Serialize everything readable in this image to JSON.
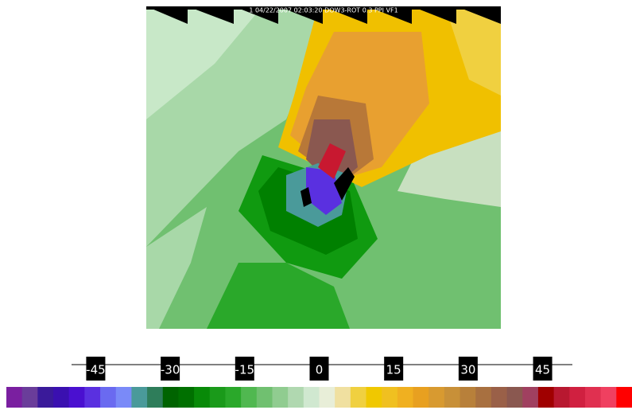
{
  "header": "1 04/22/2007 02:03:20 DOW3-ROT 0.3 PPI VF1",
  "colorbar": {
    "range": [
      -63,
      63
    ],
    "ticks": [
      -45,
      -30,
      -15,
      0,
      15,
      30,
      45
    ],
    "colors": [
      "#7a1fa0",
      "#6a3d9a",
      "#3a1a9a",
      "#3a10b0",
      "#4a10d0",
      "#5a30e0",
      "#6a6af0",
      "#7a8af8",
      "#4a9a9a",
      "#2e7d5a",
      "#006400",
      "#007000",
      "#088a08",
      "#1a9a1a",
      "#2aa82a",
      "#50b850",
      "#70c070",
      "#90cc90",
      "#b0d8b0",
      "#d0e8d0",
      "#e8eed8",
      "#f0e0a0",
      "#f0d040",
      "#f0c800",
      "#f0c020",
      "#f0b020",
      "#e8a020",
      "#d89a30",
      "#c89038",
      "#b8803a",
      "#a87040",
      "#9a6048",
      "#8a5850",
      "#a04060",
      "#a00000",
      "#b81830",
      "#d02040",
      "#e03050",
      "#f04060",
      "#ff0000"
    ]
  }
}
